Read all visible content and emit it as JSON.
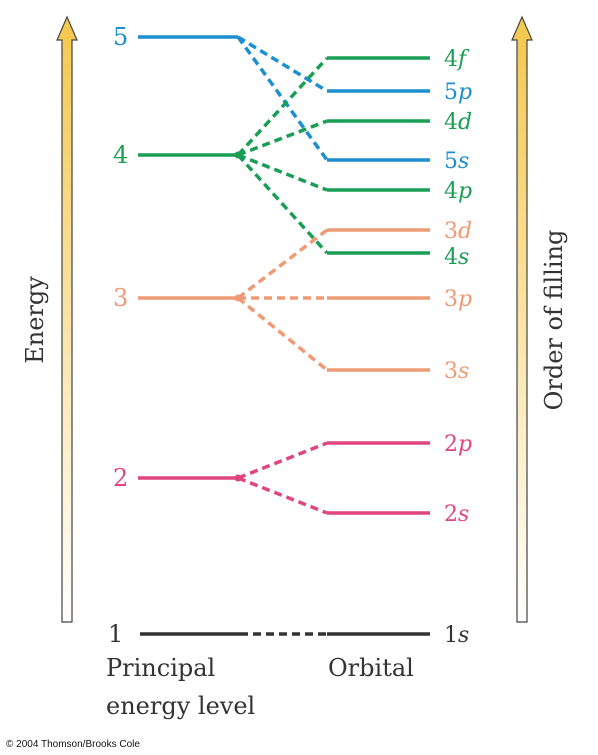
{
  "colors": {
    "level_1": "#333333",
    "level_2": "#e0457f",
    "level_3": "#ef9a74",
    "level_4": "#1a9e55",
    "level_5": "#1b8fcf",
    "arrow_top": "#f4c84d",
    "arrow_bottom": "#ffffff"
  },
  "axes": {
    "left_label": "Energy",
    "right_label": "Order of filling"
  },
  "captions": {
    "principal_line1": "Principal",
    "principal_line2": "energy level",
    "orbital": "Orbital"
  },
  "copyright": "© 2004 Thomson/Brooks Cole",
  "levels": [
    {
      "label": "5",
      "color_key": "level_5"
    },
    {
      "label": "4",
      "color_key": "level_4"
    },
    {
      "label": "3",
      "color_key": "level_3"
    },
    {
      "label": "2",
      "color_key": "level_2"
    },
    {
      "label": "1",
      "color_key": "level_1"
    }
  ],
  "orbitals": [
    {
      "n": "4",
      "l": "f",
      "color_key": "level_4"
    },
    {
      "n": "5",
      "l": "p",
      "color_key": "level_5"
    },
    {
      "n": "4",
      "l": "d",
      "color_key": "level_4"
    },
    {
      "n": "5",
      "l": "s",
      "color_key": "level_5"
    },
    {
      "n": "4",
      "l": "p",
      "color_key": "level_4"
    },
    {
      "n": "3",
      "l": "d",
      "color_key": "level_3"
    },
    {
      "n": "4",
      "l": "s",
      "color_key": "level_4"
    },
    {
      "n": "3",
      "l": "p",
      "color_key": "level_3"
    },
    {
      "n": "3",
      "l": "s",
      "color_key": "level_3"
    },
    {
      "n": "2",
      "l": "p",
      "color_key": "level_2"
    },
    {
      "n": "2",
      "l": "s",
      "color_key": "level_2"
    },
    {
      "n": "1",
      "l": "s",
      "color_key": "level_1"
    }
  ]
}
